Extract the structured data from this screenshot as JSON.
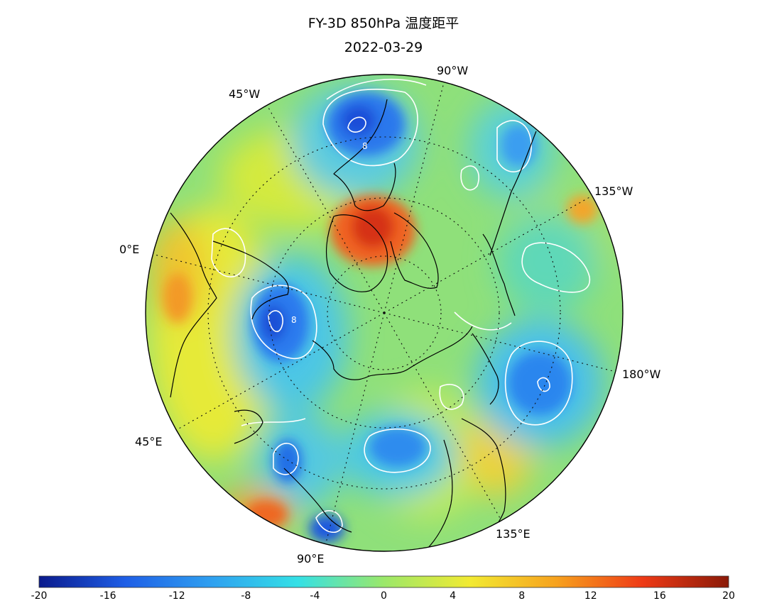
{
  "title": {
    "line1": "FY-3D 850hPa 温度距平",
    "line2": "2022-03-29"
  },
  "longitude_labels": {
    "w90": "90°W",
    "w45": "45°W",
    "w135": "135°W",
    "e0": "0°E",
    "w180": "180°W",
    "e45": "45°E",
    "e135": "135°E",
    "e90": "90°E"
  },
  "colorbar": {
    "min": -20,
    "max": 20,
    "tick_labels": [
      "-20",
      "-16",
      "-12",
      "-8",
      "-4",
      "0",
      "4",
      "8",
      "12",
      "16",
      "20"
    ],
    "colors": [
      "#0a1a8c",
      "#1e5ee6",
      "#2fa0f0",
      "#34e0e6",
      "#9be86a",
      "#f2ea32",
      "#f7a21e",
      "#ee3a16",
      "#8a1a08"
    ]
  },
  "map": {
    "projection": "north polar stereographic",
    "contour_color": "#ffffff",
    "coastline_color": "#000000",
    "gridline_color": "#000000",
    "contour_labels": [
      "8",
      "8"
    ]
  }
}
